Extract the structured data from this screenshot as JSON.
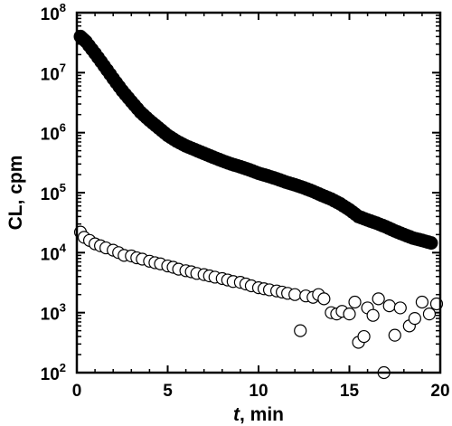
{
  "chart_data": {
    "type": "scatter",
    "xlabel_var": "t",
    "xlabel_unit": ", min",
    "ylabel": "CL, cpm",
    "xlim": [
      0,
      20
    ],
    "ylim": [
      100,
      100000000
    ],
    "y_scale": "log",
    "grid": false,
    "x_ticks": [
      "0",
      "5",
      "10",
      "15",
      "20"
    ],
    "y_ticks": [
      {
        "base": "10",
        "exp": "2"
      },
      {
        "base": "10",
        "exp": "3"
      },
      {
        "base": "10",
        "exp": "4"
      },
      {
        "base": "10",
        "exp": "5"
      },
      {
        "base": "10",
        "exp": "6"
      },
      {
        "base": "10",
        "exp": "7"
      },
      {
        "base": "10",
        "exp": "8"
      }
    ],
    "series": [
      {
        "marker": "filled-circle",
        "color": "#000000",
        "points": [
          [
            0.2,
            40000000
          ],
          [
            0.5,
            33000000
          ],
          [
            1.0,
            21000000
          ],
          [
            1.5,
            13000000
          ],
          [
            2.0,
            8000000
          ],
          [
            2.5,
            5000000
          ],
          [
            3.0,
            3300000
          ],
          [
            3.5,
            2200000
          ],
          [
            4.0,
            1600000
          ],
          [
            4.5,
            1200000
          ],
          [
            5.0,
            900000
          ],
          [
            5.5,
            720000
          ],
          [
            6.0,
            600000
          ],
          [
            6.5,
            520000
          ],
          [
            7.0,
            450000
          ],
          [
            7.5,
            390000
          ],
          [
            8.0,
            340000
          ],
          [
            8.5,
            300000
          ],
          [
            9.0,
            270000
          ],
          [
            9.5,
            240000
          ],
          [
            10.0,
            210000
          ],
          [
            10.5,
            190000
          ],
          [
            11.0,
            170000
          ],
          [
            11.5,
            150000
          ],
          [
            12.0,
            135000
          ],
          [
            12.5,
            120000
          ],
          [
            13.0,
            105000
          ],
          [
            13.5,
            90000
          ],
          [
            14.0,
            78000
          ],
          [
            14.5,
            65000
          ],
          [
            15.0,
            52000
          ],
          [
            15.5,
            40000
          ],
          [
            16.0,
            35000
          ],
          [
            16.5,
            31000
          ],
          [
            17.0,
            27000
          ],
          [
            17.5,
            23000
          ],
          [
            18.0,
            20000
          ],
          [
            18.5,
            17500
          ],
          [
            19.0,
            16000
          ],
          [
            19.5,
            14500
          ]
        ]
      },
      {
        "marker": "open-circle",
        "color": "#000000",
        "points": [
          [
            0.2,
            22000
          ],
          [
            0.4,
            18000
          ],
          [
            0.7,
            16000
          ],
          [
            1.0,
            14000
          ],
          [
            1.3,
            13000
          ],
          [
            1.6,
            12000
          ],
          [
            2.0,
            11000
          ],
          [
            2.3,
            10000
          ],
          [
            2.6,
            9000
          ],
          [
            3.0,
            8800
          ],
          [
            3.3,
            8200
          ],
          [
            3.6,
            7800
          ],
          [
            4.0,
            7200
          ],
          [
            4.3,
            6800
          ],
          [
            4.6,
            6500
          ],
          [
            5.0,
            6000
          ],
          [
            5.3,
            5700
          ],
          [
            5.6,
            5300
          ],
          [
            6.0,
            5000
          ],
          [
            6.3,
            4800
          ],
          [
            6.6,
            4500
          ],
          [
            7.0,
            4300
          ],
          [
            7.3,
            4100
          ],
          [
            7.6,
            3900
          ],
          [
            8.0,
            3700
          ],
          [
            8.3,
            3500
          ],
          [
            8.6,
            3300
          ],
          [
            9.0,
            3200
          ],
          [
            9.3,
            3000
          ],
          [
            9.6,
            2800
          ],
          [
            10.0,
            2600
          ],
          [
            10.3,
            2500
          ],
          [
            10.6,
            2400
          ],
          [
            11.0,
            2300
          ],
          [
            11.3,
            2200
          ],
          [
            11.6,
            2100
          ],
          [
            12.0,
            2000
          ],
          [
            12.3,
            500
          ],
          [
            12.6,
            1900
          ],
          [
            13.0,
            1800
          ],
          [
            13.3,
            2000
          ],
          [
            13.6,
            1700
          ],
          [
            14.0,
            1000
          ],
          [
            14.3,
            950
          ],
          [
            14.6,
            1050
          ],
          [
            15.0,
            950
          ],
          [
            15.3,
            1500
          ],
          [
            15.5,
            320
          ],
          [
            15.8,
            400
          ],
          [
            16.0,
            1200
          ],
          [
            16.3,
            900
          ],
          [
            16.6,
            1700
          ],
          [
            16.9,
            100
          ],
          [
            17.2,
            1300
          ],
          [
            17.5,
            420
          ],
          [
            17.8,
            1200
          ],
          [
            18.3,
            600
          ],
          [
            18.6,
            800
          ],
          [
            19.0,
            1500
          ],
          [
            19.4,
            950
          ],
          [
            19.8,
            1400
          ]
        ]
      }
    ]
  }
}
